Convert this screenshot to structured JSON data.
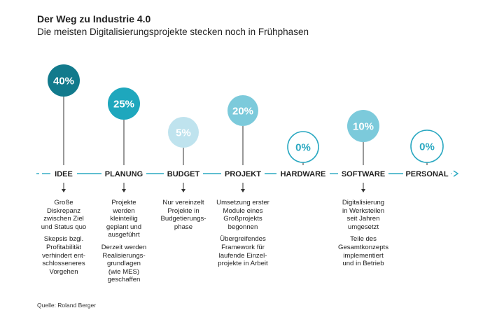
{
  "title": "Der Weg zu Industrie 4.0",
  "subtitle": "Die meisten Digitalisierungsprojekte stecken noch in Frühphasen",
  "source": "Quelle: Roland Berger",
  "colors": {
    "dark": "#127a8c",
    "mid": "#1ea7bd",
    "light": "#7ccadb",
    "pale": "#bfe3ee",
    "outline": "#2aa8c1",
    "line": "#2aa8c1"
  },
  "stages": [
    {
      "label": "IDEE",
      "percent": "40%",
      "value": 40,
      "style": "dark",
      "notes": [
        "Große\nDiskrepanz\nzwischen Ziel\nund Status quo",
        "Skepsis bzgl.\nProfitabilität\nverhindert ent-\nschlosseneres\nVorgehen"
      ]
    },
    {
      "label": "PLANUNG",
      "percent": "25%",
      "value": 25,
      "style": "mid",
      "notes": [
        "Projekte\nwerden\nkleinteilig\ngeplant und\nausgeführt",
        "Derzeit werden\nRealisierungs-\ngrundlagen\n(wie MES)\ngeschaffen"
      ]
    },
    {
      "label": "BUDGET",
      "percent": "5%",
      "value": 5,
      "style": "pale",
      "notes": [
        "Nur vereinzelt\nProjekte in\nBudgetierungs-\nphase"
      ]
    },
    {
      "label": "PROJEKT",
      "percent": "20%",
      "value": 20,
      "style": "light",
      "notes": [
        "Umsetzung erster\nModule eines\nGroßprojekts\nbegonnen",
        "Übergreifendes\nFramework für\nlaufende Einzel-\nprojekte in Arbeit"
      ]
    },
    {
      "label": "HARDWARE",
      "percent": "0%",
      "value": 0,
      "style": "outline",
      "notes": []
    },
    {
      "label": "SOFTWARE",
      "percent": "10%",
      "value": 10,
      "style": "light",
      "notes": [
        "Digitalisierung\nin Werksteilen\nseit Jahren\numgesetzt",
        "Teile des\nGesamtkonzepts\nimplementiert\nund in Betrieb"
      ]
    },
    {
      "label": "PERSONAL",
      "percent": "0%",
      "value": 0,
      "style": "outline",
      "notes": []
    }
  ]
}
